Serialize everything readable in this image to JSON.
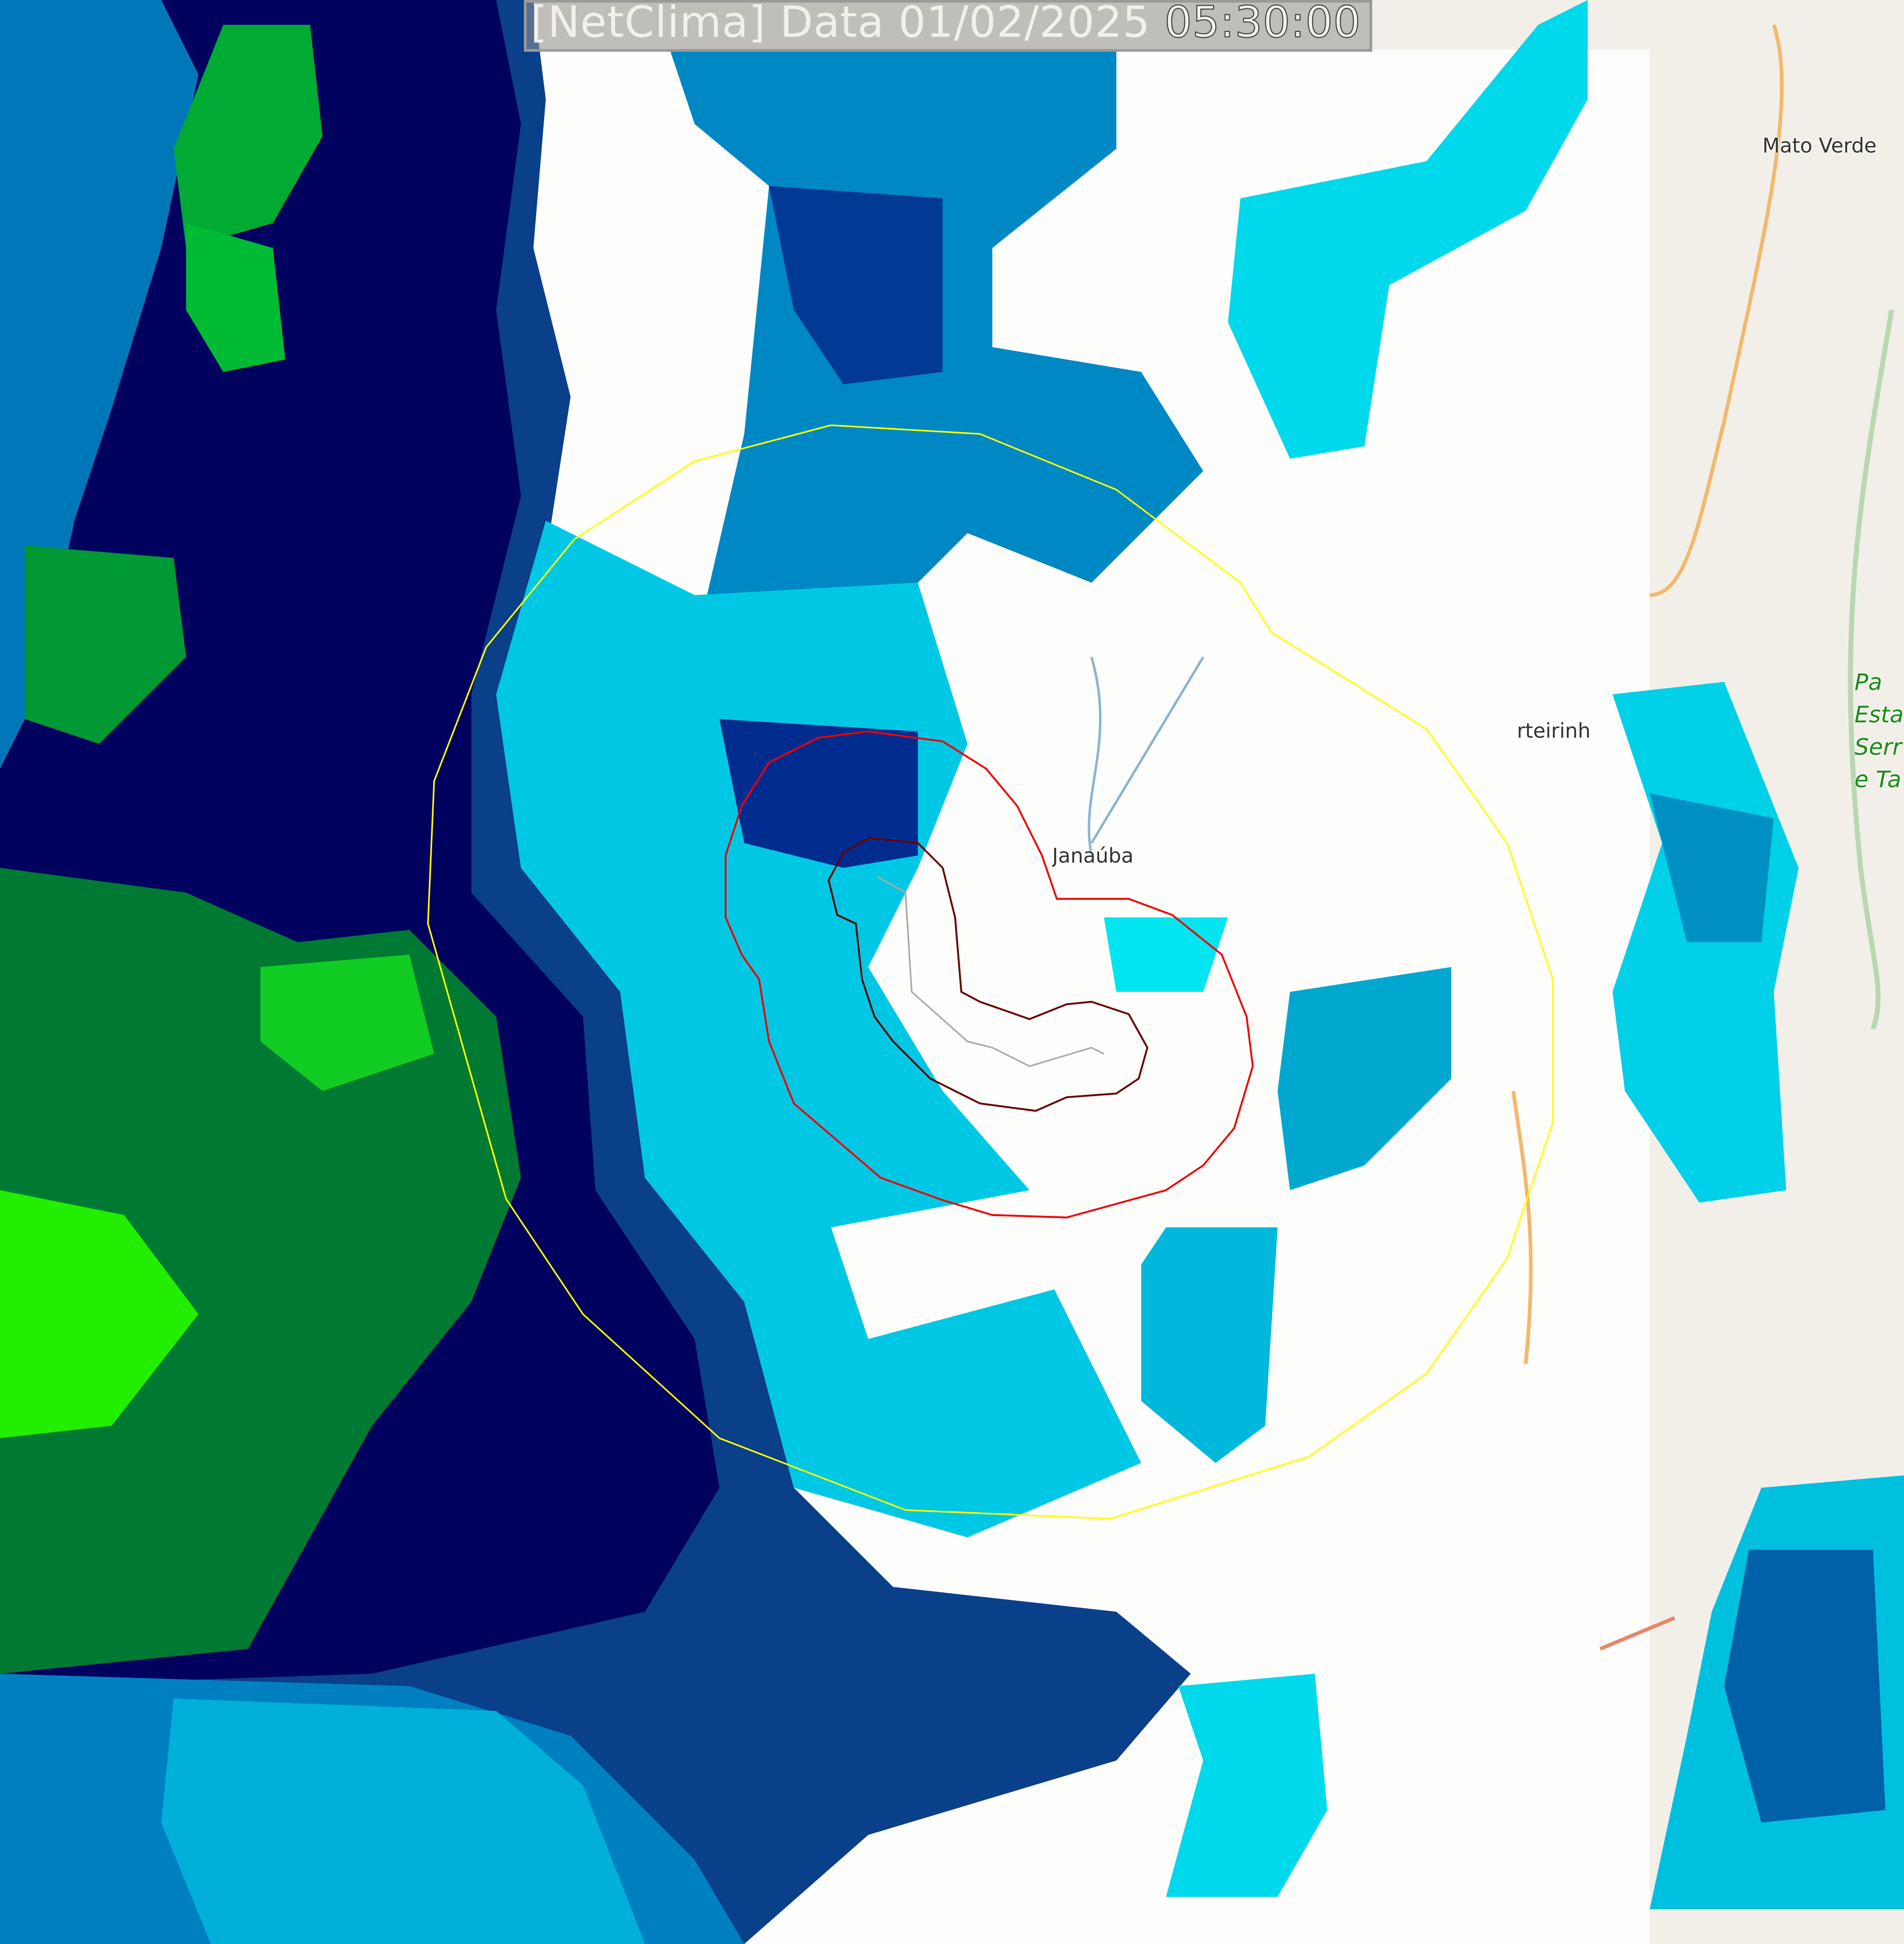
{
  "title": {
    "prefix": "[NetClima] Data 01/02/2025",
    "time": "05:30:00"
  },
  "places": [
    {
      "name": "Mato Verde"
    },
    {
      "name": "Janaúba"
    },
    {
      "name": "rteirinh"
    }
  ],
  "park_label": [
    "Pa",
    "Esta",
    "Serr",
    "e Ta"
  ],
  "colors": {
    "very_dark_blue": "#00005a",
    "dark_blue": "#002a80",
    "blue": "#0066aa",
    "mid_cyan": "#00aad0",
    "cyan": "#00e5f0",
    "bright_cyan": "#00ffff",
    "dark_green": "#006633",
    "green": "#00aa33",
    "bright_green": "#22ff00",
    "range_ring_outer": "#ffff00",
    "range_ring_inner": "#ee0000",
    "contour_inner": "#660000"
  }
}
